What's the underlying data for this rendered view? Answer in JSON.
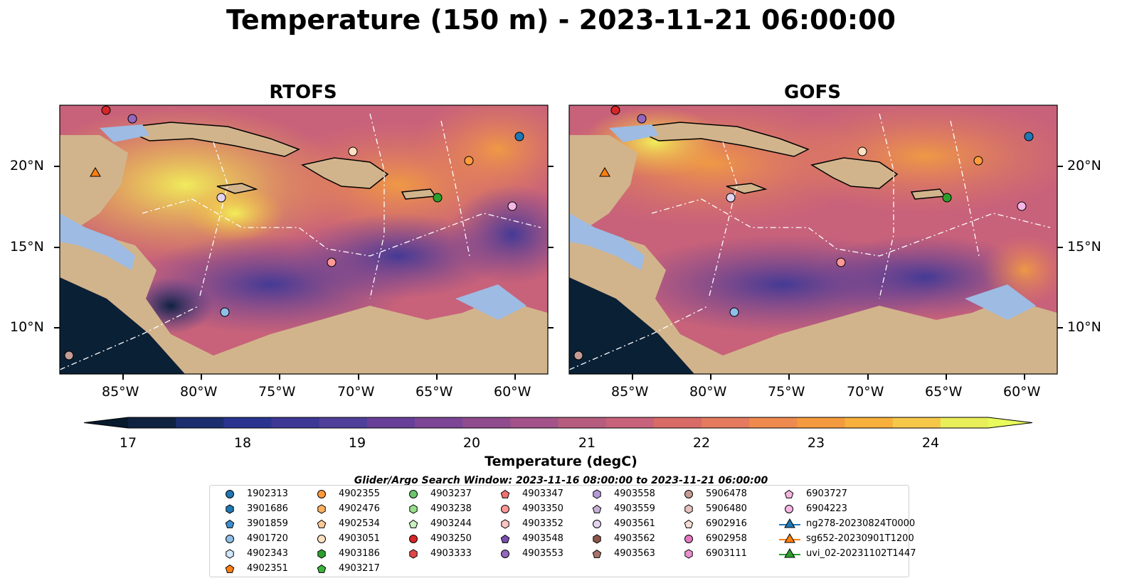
{
  "title": "Temperature (150 m) - 2023-11-21 06:00:00",
  "panels": [
    {
      "title": "RTOFS"
    },
    {
      "title": "GOFS"
    }
  ],
  "axes": {
    "lat_labels": [
      "20°N",
      "15°N",
      "10°N"
    ],
    "lon_labels": [
      "85°W",
      "80°W",
      "75°W",
      "70°W",
      "65°W",
      "60°W"
    ]
  },
  "colorbar": {
    "label": "Temperature (degC)",
    "ticks": [
      "17",
      "18",
      "19",
      "20",
      "21",
      "22",
      "23",
      "24"
    ],
    "range": [
      17,
      24.5
    ],
    "step": 0.5,
    "colors": [
      "#0f2240",
      "#1c2e6e",
      "#2a3490",
      "#3d3896",
      "#4f3f9a",
      "#673f98",
      "#7d4596",
      "#8f4b8e",
      "#a3528a",
      "#b65c7e",
      "#c8627a",
      "#d86b66",
      "#e47a5e",
      "#ef8a4f",
      "#f49b3f",
      "#f8b03c",
      "#f6c84a",
      "#e8ee58"
    ],
    "under_color": "#071a2e",
    "over_color": "#e8fb5c"
  },
  "search_window": "Glider/Argo Search Window: 2023-11-16 08:00:00 to 2023-11-21 06:00:00",
  "legend": [
    {
      "label": "1902313",
      "marker": "circle",
      "color": "#1f77b4"
    },
    {
      "label": "3901686",
      "marker": "hexagon",
      "color": "#1f77b4"
    },
    {
      "label": "3901859",
      "marker": "pentagon",
      "color": "#3b8ed0"
    },
    {
      "label": "4901720",
      "marker": "circle",
      "color": "#8fbfe8"
    },
    {
      "label": "4902343",
      "marker": "hexagon",
      "color": "#cfe6fb"
    },
    {
      "label": "4902351",
      "marker": "pentagon",
      "color": "#ff7f0e"
    },
    {
      "label": "4902355",
      "marker": "circle",
      "color": "#ff9a3d"
    },
    {
      "label": "4902476",
      "marker": "hexagon",
      "color": "#ffb061"
    },
    {
      "label": "4902534",
      "marker": "pentagon",
      "color": "#ffc99a"
    },
    {
      "label": "4903051",
      "marker": "circle",
      "color": "#ffe0c0"
    },
    {
      "label": "4903186",
      "marker": "hexagon",
      "color": "#2ca02c"
    },
    {
      "label": "4903217",
      "marker": "pentagon",
      "color": "#3cb43c"
    },
    {
      "label": "4903237",
      "marker": "circle",
      "color": "#6cc66c"
    },
    {
      "label": "4903238",
      "marker": "hexagon",
      "color": "#98df8a"
    },
    {
      "label": "4903244",
      "marker": "pentagon",
      "color": "#c8f0c0"
    },
    {
      "label": "4903250",
      "marker": "circle",
      "color": "#d62728"
    },
    {
      "label": "4903333",
      "marker": "hexagon",
      "color": "#e04848"
    },
    {
      "label": "4903347",
      "marker": "pentagon",
      "color": "#f07070"
    },
    {
      "label": "4903350",
      "marker": "circle",
      "color": "#ff9896"
    },
    {
      "label": "4903352",
      "marker": "hexagon",
      "color": "#ffc4c2"
    },
    {
      "label": "4903548",
      "marker": "pentagon",
      "color": "#7a4fb0"
    },
    {
      "label": "4903553",
      "marker": "circle",
      "color": "#9467bd"
    },
    {
      "label": "4903558",
      "marker": "hexagon",
      "color": "#b49ad8"
    },
    {
      "label": "4903559",
      "marker": "pentagon",
      "color": "#c5b0d5"
    },
    {
      "label": "4903561",
      "marker": "circle",
      "color": "#e2d4f0"
    },
    {
      "label": "4903562",
      "marker": "hexagon",
      "color": "#8c564b"
    },
    {
      "label": "4903563",
      "marker": "pentagon",
      "color": "#a8726a"
    },
    {
      "label": "5906478",
      "marker": "circle",
      "color": "#c49c94"
    },
    {
      "label": "5906480",
      "marker": "hexagon",
      "color": "#e6c3bd"
    },
    {
      "label": "6902916",
      "marker": "pentagon",
      "color": "#f5ddd6"
    },
    {
      "label": "6902958",
      "marker": "circle",
      "color": "#e377c2"
    },
    {
      "label": "6903111",
      "marker": "hexagon",
      "color": "#ea8fd0"
    },
    {
      "label": "6903727",
      "marker": "pentagon",
      "color": "#f4b6e0"
    },
    {
      "label": "6904223",
      "marker": "circle",
      "color": "#f7b6e8"
    },
    {
      "label": "ng278-20230824T0000",
      "marker": "triangle",
      "color": "#1f77b4"
    },
    {
      "label": "sg652-20230901T1200",
      "marker": "triangle",
      "color": "#ff7f0e"
    },
    {
      "label": "uvi_02-20231102T1447",
      "marker": "triangle",
      "color": "#2ca02c"
    }
  ]
}
